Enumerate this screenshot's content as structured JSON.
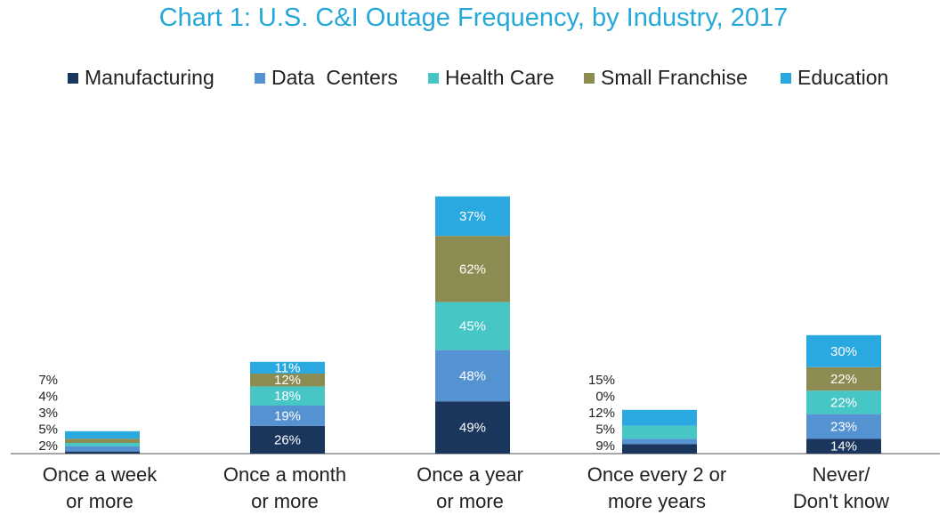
{
  "chart_data": {
    "type": "bar",
    "stacked": true,
    "title": "Chart 1: U.S. C&I Outage Frequency, by Industry, 2017",
    "categories": [
      [
        "Once a week",
        "or more"
      ],
      [
        "Once a month",
        "or more"
      ],
      [
        "Once a year",
        "or more"
      ],
      [
        "Once every 2 or",
        "more years"
      ],
      [
        "Never/",
        "Don't know"
      ]
    ],
    "series": [
      {
        "name": "Manufacturing",
        "color": "#1b365d",
        "values": [
          2,
          26,
          49,
          9,
          14
        ]
      },
      {
        "name": "Data  Centers",
        "color": "#5592d2",
        "values": [
          5,
          19,
          48,
          5,
          23
        ]
      },
      {
        "name": "Health Care",
        "color": "#47c6c6",
        "values": [
          3,
          18,
          45,
          12,
          22
        ]
      },
      {
        "name": "Small Franchise",
        "color": "#8c8c52",
        "values": [
          4,
          12,
          62,
          0,
          22
        ]
      },
      {
        "name": "Education",
        "color": "#2aa9e0",
        "values": [
          7,
          11,
          37,
          15,
          30
        ]
      }
    ],
    "legend_position": "top",
    "grid": false
  }
}
